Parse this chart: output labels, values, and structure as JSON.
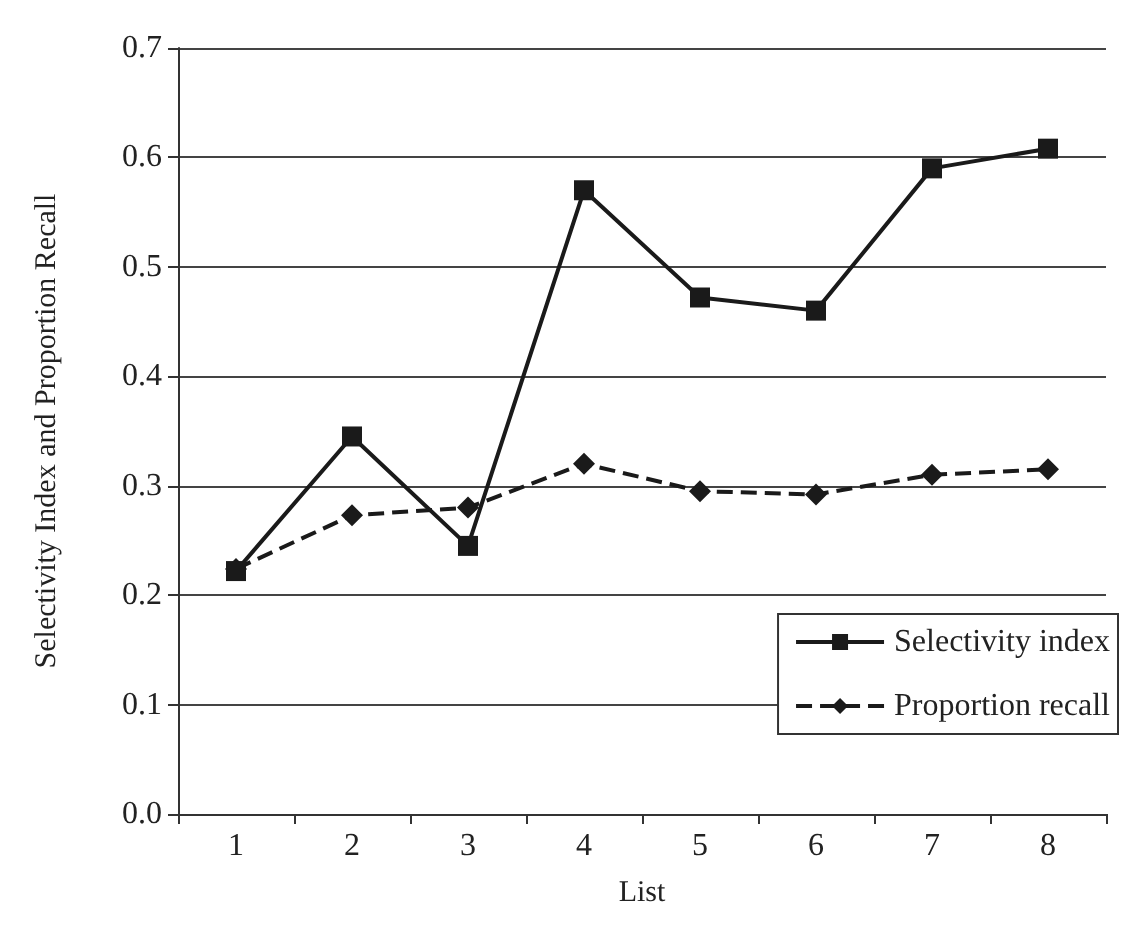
{
  "chart_data": {
    "type": "line",
    "xlabel": "List",
    "ylabel": "Selectivity Index and Proportion Recall",
    "categories": [
      "1",
      "2",
      "3",
      "4",
      "5",
      "6",
      "7",
      "8"
    ],
    "series": [
      {
        "name": "Selectivity index",
        "color": "#1a1a1a",
        "marker": "square",
        "line_style": "solid",
        "values": [
          0.222,
          0.345,
          0.245,
          0.57,
          0.472,
          0.46,
          0.59,
          0.608
        ]
      },
      {
        "name": "Proportion recall",
        "color": "#1a1a1a",
        "marker": "diamond",
        "line_style": "dashed",
        "values": [
          0.224,
          0.273,
          0.28,
          0.32,
          0.295,
          0.292,
          0.31,
          0.315
        ]
      }
    ],
    "ylim": [
      0,
      0.7
    ],
    "yticks": [
      {
        "value": 0,
        "label": "0.0"
      },
      {
        "value": 0.1,
        "label": "0.1"
      },
      {
        "value": 0.2,
        "label": "0.2"
      },
      {
        "value": 0.3,
        "label": "0.3"
      },
      {
        "value": 0.4,
        "label": "0.4"
      },
      {
        "value": 0.5,
        "label": "0.5"
      },
      {
        "value": 0.6,
        "label": "0.6"
      },
      {
        "value": 0.7,
        "label": "0.7"
      }
    ],
    "grid": "y",
    "legend": "bottom right"
  }
}
